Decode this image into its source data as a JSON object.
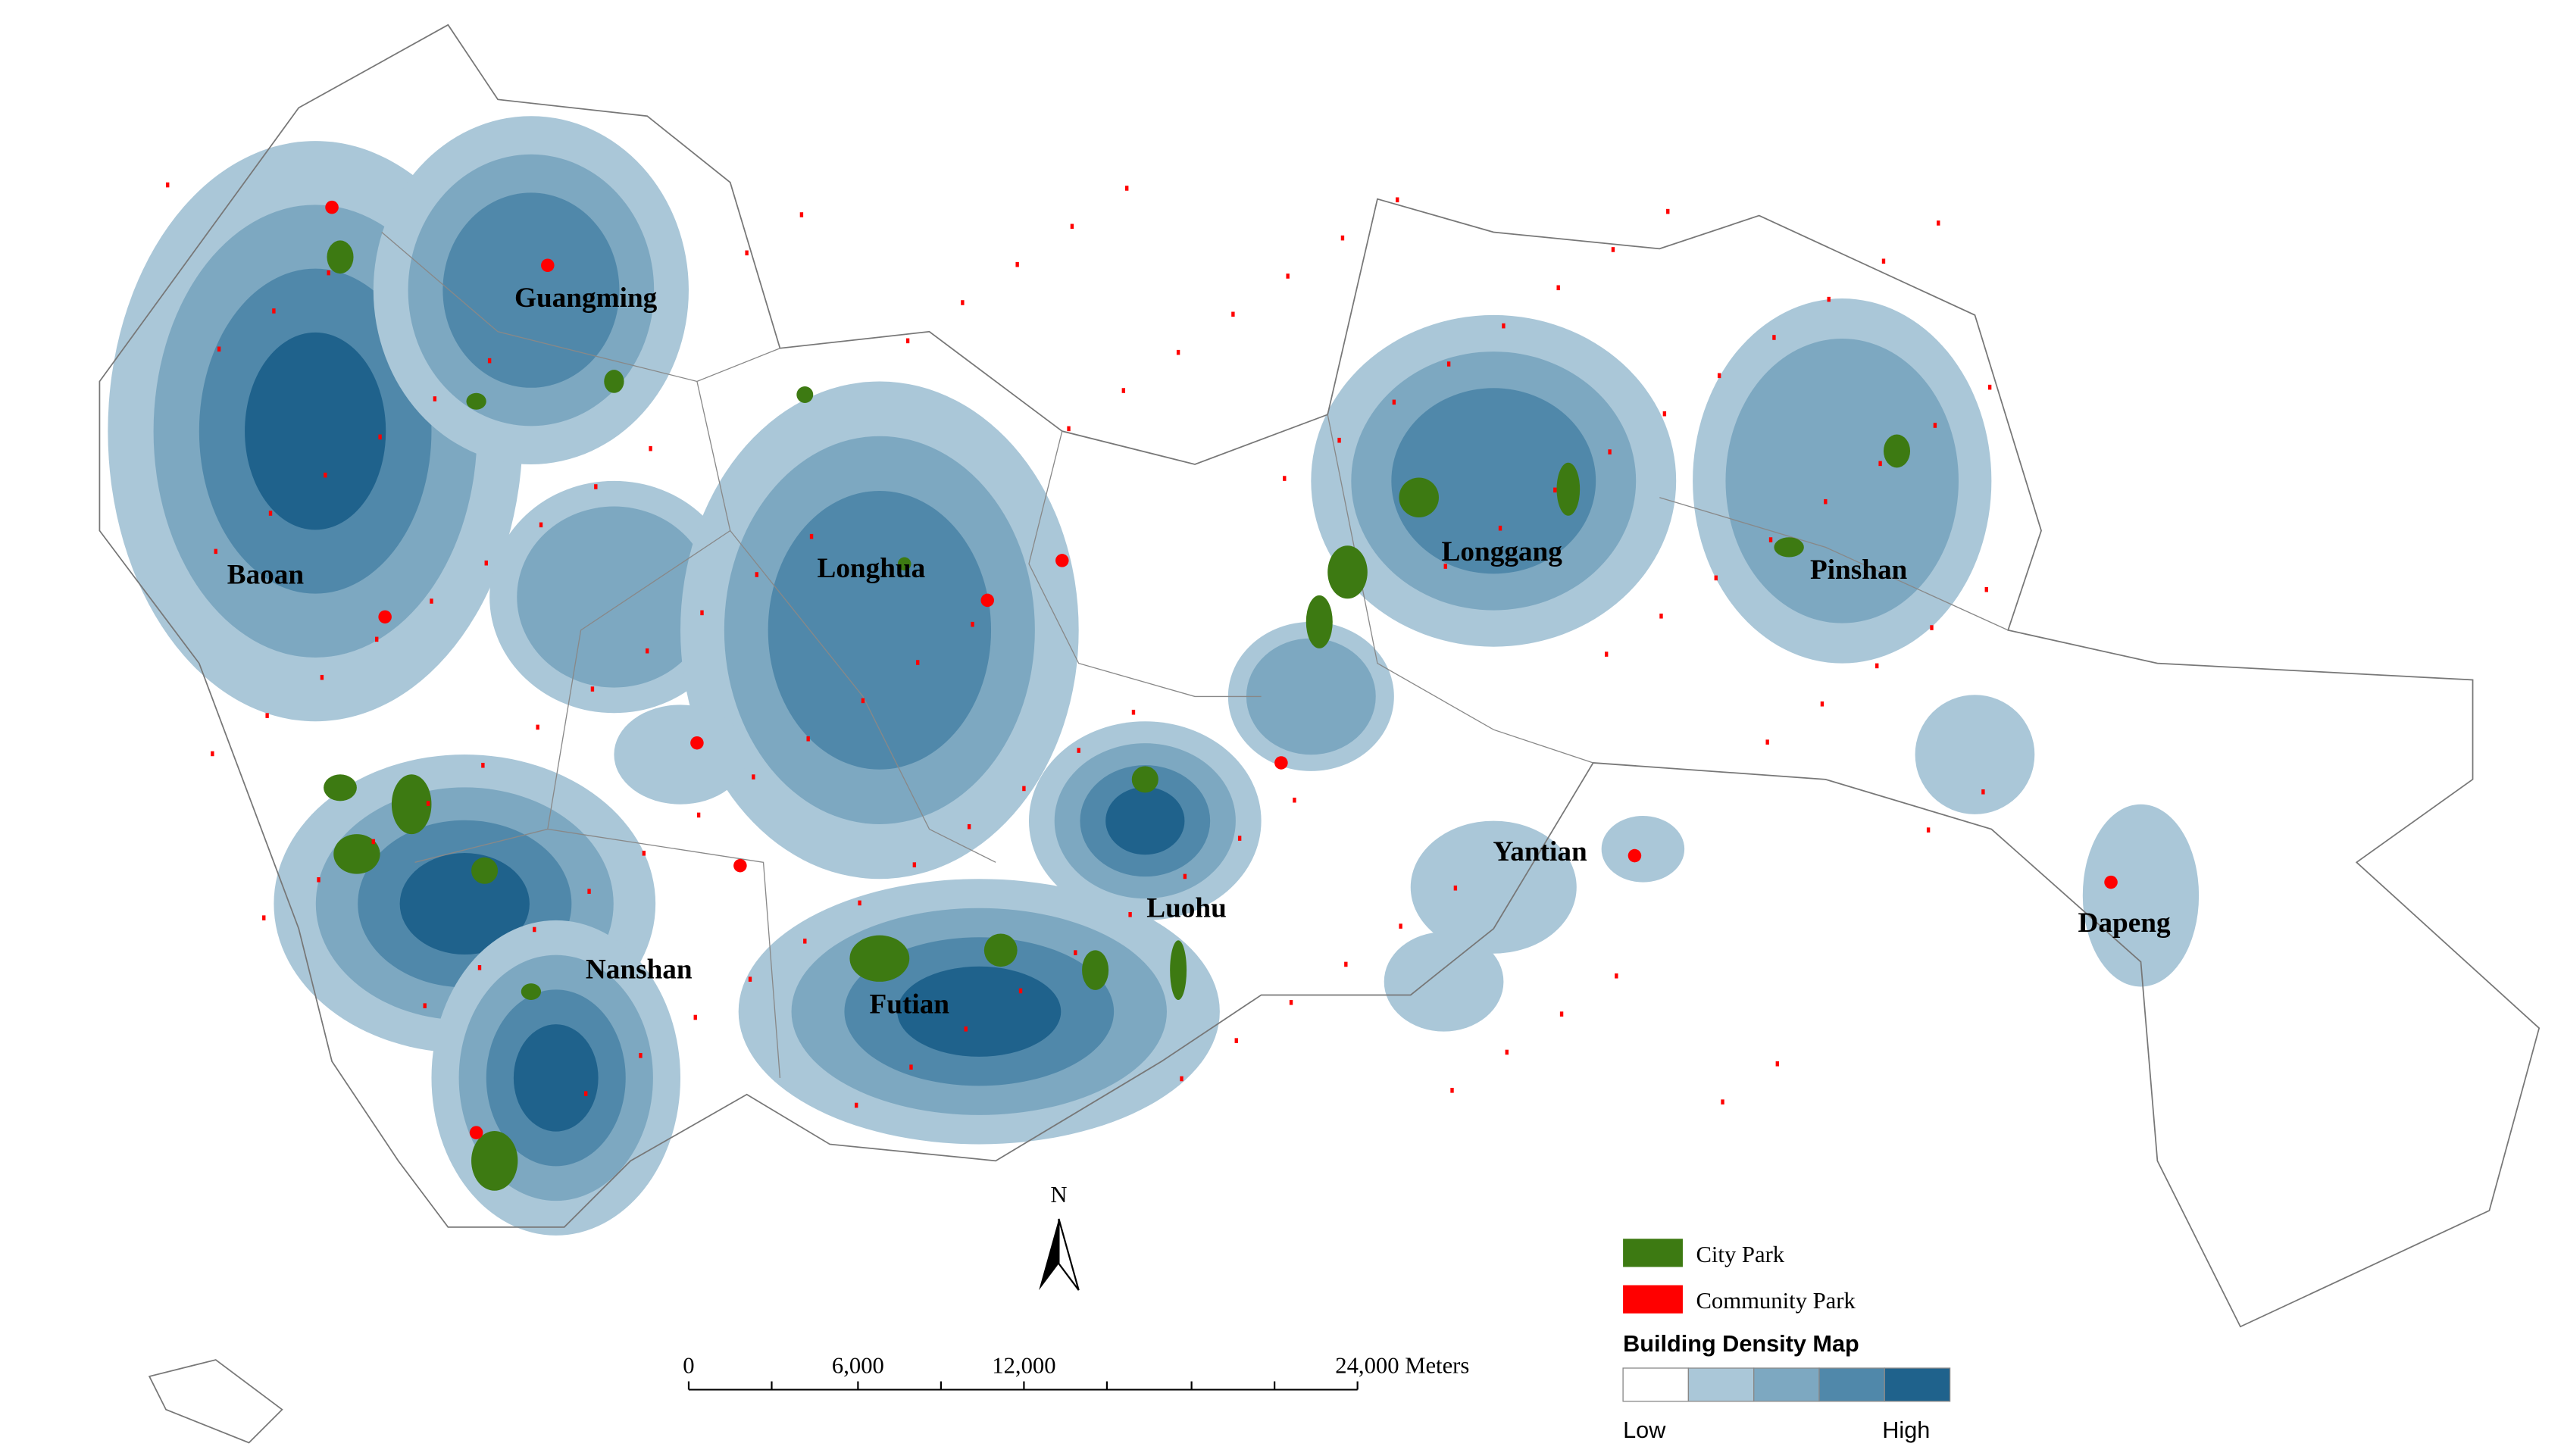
{
  "districts": [
    {
      "label": "Guangming"
    },
    {
      "label": "Baoan"
    },
    {
      "label": "Longhua"
    },
    {
      "label": "Longgang"
    },
    {
      "label": "Pinshan"
    },
    {
      "label": "Nanshan"
    },
    {
      "label": "Futian"
    },
    {
      "label": "Luohu"
    },
    {
      "label": "Yantian"
    },
    {
      "label": "Dapeng"
    }
  ],
  "north_arrow": {
    "label": "N"
  },
  "scale_bar": {
    "labels": [
      "0",
      "6,000",
      "12,000",
      "24,000 Meters"
    ]
  },
  "legend": {
    "items": [
      {
        "label": "City Park"
      },
      {
        "label": "Community Park"
      }
    ],
    "density": {
      "title": "Building Density Map",
      "low": "Low",
      "high": "High"
    }
  }
}
